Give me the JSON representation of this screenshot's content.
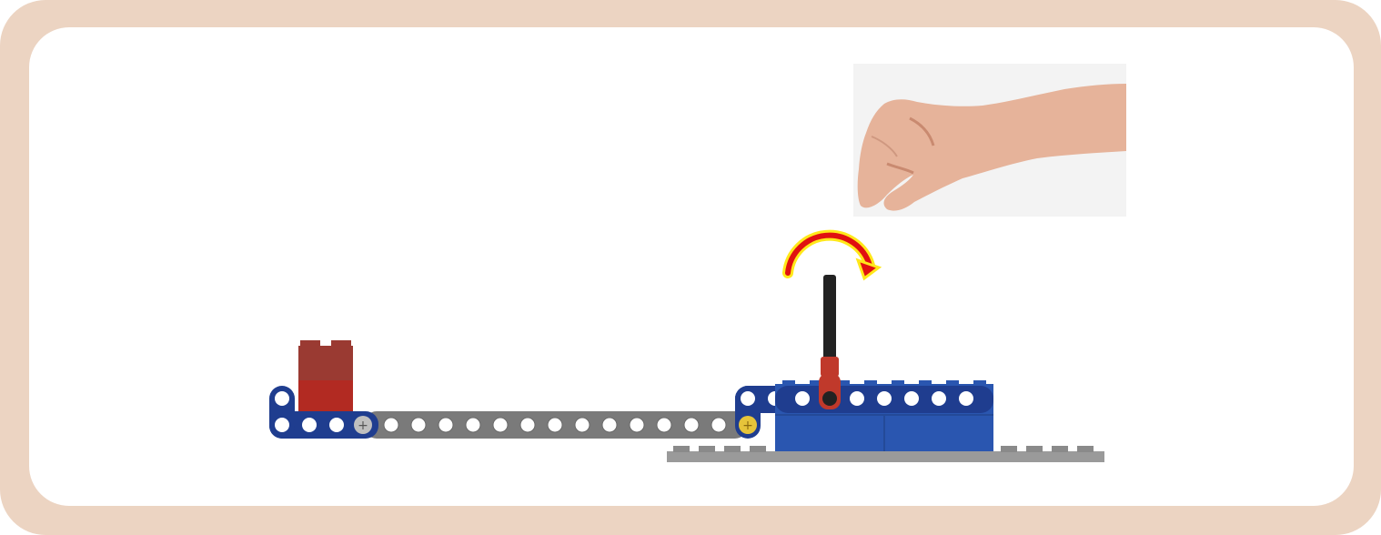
{
  "scene": {
    "background_color": "#ffffff",
    "frame_color": "#ecd4c2",
    "hand_photo_background": "#f3f3f3",
    "colors": {
      "dark_blue": "#1f3d8f",
      "blue_brick": "#2a56b0",
      "red_brick": "#b22a22",
      "red_brick_top": "#9a3a32",
      "grey_plate": "#9a9a9a",
      "lever_black": "#222222",
      "lever_red": "#c0392b",
      "arrow_red": "#e01010",
      "arrow_glow": "#ffe81a",
      "skin": "#e8b49a"
    },
    "icons": {
      "hand": "hand-icon",
      "rotation_arrow": "rotate-arrow-icon"
    }
  }
}
